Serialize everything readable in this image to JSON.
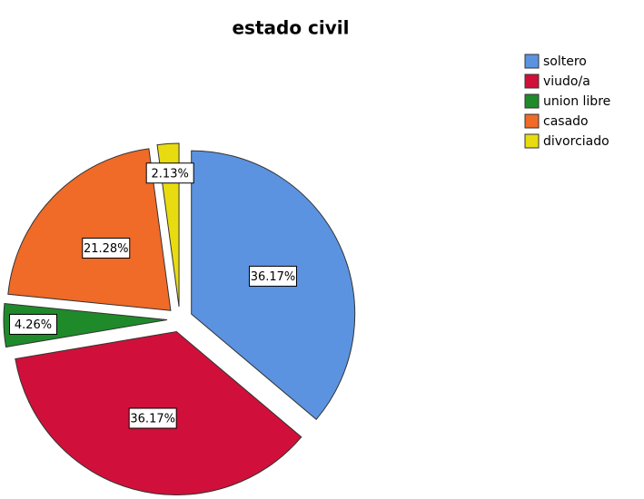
{
  "chart_data": {
    "type": "pie",
    "title": "estado civil",
    "categories": [
      "soltero",
      "viudo/a",
      "union libre",
      "casado",
      "divorciado"
    ],
    "values": [
      36.17,
      36.17,
      4.26,
      21.28,
      2.13
    ],
    "value_labels": [
      "36.17%",
      "36.17%",
      "4.26%",
      "21.28%",
      "2.13%"
    ],
    "colors": [
      "#5b93e0",
      "#d0103a",
      "#1f8a2a",
      "#f06a28",
      "#e8dc10"
    ],
    "legend": "right"
  }
}
